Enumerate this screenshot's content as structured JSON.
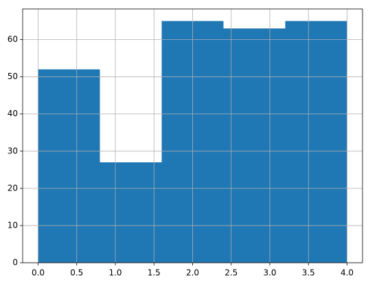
{
  "chart_data": {
    "type": "histogram",
    "bins": [
      0,
      0.8,
      1.6,
      2.4,
      3.2,
      4.0
    ],
    "values": [
      52,
      27,
      65,
      63,
      65
    ],
    "color": "#1f77b4",
    "xlim": [
      -0.2,
      4.2
    ],
    "xticks": [
      {
        "value": 0,
        "label": "0.0"
      },
      0.5,
      {
        "value": 1,
        "label": "1.0"
      },
      1.5,
      {
        "value": 2,
        "label": "2.0"
      },
      2.5,
      {
        "value": 3,
        "label": "3.0"
      },
      3.5,
      {
        "value": 4,
        "label": "4.0"
      }
    ],
    "ylim": [
      0,
      68.25
    ],
    "yticks": [
      0,
      10,
      20,
      30,
      40,
      50,
      60
    ],
    "grid": true
  }
}
